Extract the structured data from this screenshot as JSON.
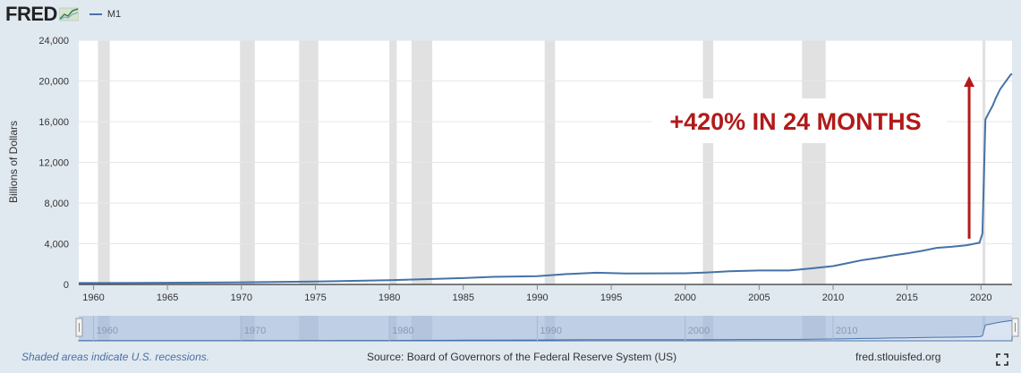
{
  "header": {
    "logo": "FRED",
    "legend_label": "M1"
  },
  "chart_data": {
    "type": "line",
    "ylabel": "Billions of Dollars",
    "ylim": [
      0,
      24000
    ],
    "y_ticks": [
      0,
      4000,
      8000,
      12000,
      16000,
      20000,
      24000
    ],
    "y_tick_labels": [
      "0",
      "4,000",
      "8,000",
      "12,000",
      "16,000",
      "20,000",
      "24,000"
    ],
    "xlim": [
      1959,
      2022.1
    ],
    "x_ticks": [
      1960,
      1965,
      1970,
      1975,
      1980,
      1985,
      1990,
      1995,
      2000,
      2005,
      2010,
      2015,
      2020
    ],
    "grid": "horizontal",
    "series": [
      {
        "name": "M1",
        "color": "#4572a7",
        "x": [
          1959,
          1960,
          1965,
          1970,
          1975,
          1980,
          1985,
          1987,
          1990,
          1992,
          1994,
          1996,
          1998,
          2000,
          2001.5,
          2003,
          2005,
          2007,
          2008.7,
          2010,
          2011,
          2012,
          2013,
          2014,
          2015,
          2016,
          2017,
          2018,
          2019,
          2019.9,
          2020.1,
          2020.3,
          2020.5,
          2020.8,
          2021,
          2021.3,
          2021.6,
          2022,
          2022.1
        ],
        "values": [
          140,
          141,
          170,
          215,
          290,
          410,
          620,
          750,
          820,
          1020,
          1150,
          1080,
          1090,
          1100,
          1180,
          1300,
          1370,
          1370,
          1600,
          1800,
          2100,
          2400,
          2600,
          2850,
          3050,
          3300,
          3600,
          3700,
          3850,
          4100,
          5000,
          16200,
          16800,
          17600,
          18300,
          19200,
          19800,
          20600,
          20700
        ]
      }
    ],
    "recessions": [
      [
        1960.3,
        1961.1
      ],
      [
        1969.9,
        1970.9
      ],
      [
        1973.9,
        1975.2
      ],
      [
        1980.0,
        1980.5
      ],
      [
        1981.5,
        1982.9
      ],
      [
        1990.5,
        1991.2
      ],
      [
        2001.2,
        2001.9
      ],
      [
        2007.9,
        2009.5
      ],
      [
        2020.1,
        2020.3
      ]
    ],
    "annotations": [
      {
        "text": "+420% IN 24 MONTHS",
        "color": "#b21a1a"
      }
    ],
    "arrow": {
      "x": 2019.2,
      "y_from": 4500,
      "y_to": 20300,
      "color": "#b21a1a"
    },
    "navigator": {
      "x_ticks": [
        1960,
        1970,
        1980,
        1990,
        2000,
        2010
      ],
      "selected": [
        1959,
        2022.1
      ]
    }
  },
  "footer": {
    "recession_note": "Shaded areas indicate U.S. recessions.",
    "source": "Source: Board of Governors of the Federal Reserve System (US)",
    "url": "fred.stlouisfed.org"
  },
  "icons": {
    "fullscreen": "fullscreen-icon"
  }
}
